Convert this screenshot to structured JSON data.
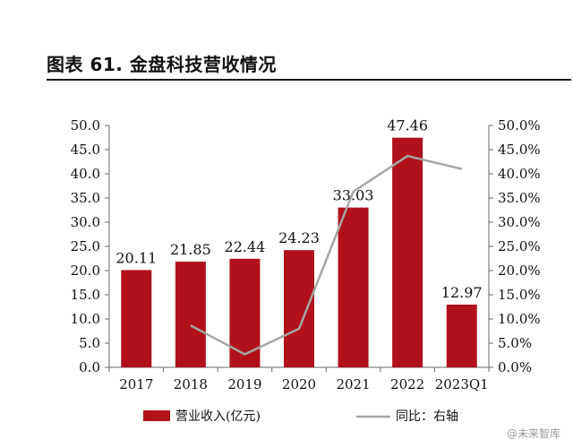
{
  "figure_title": "图表 61. 金盘科技营收情况",
  "watermark": "@未来智库",
  "colors": {
    "bar": "#b0111b",
    "line": "#a6a6a6",
    "axis": "#666666"
  },
  "chart_data": {
    "type": "bar",
    "categories": [
      "2017",
      "2018",
      "2019",
      "2020",
      "2021",
      "2022",
      "2023Q1"
    ],
    "series": [
      {
        "name": "营业收入(亿元)",
        "type": "bar",
        "axis": "left",
        "values": [
          20.11,
          21.85,
          22.44,
          24.23,
          33.03,
          47.46,
          12.97
        ]
      },
      {
        "name": "同比：右轴",
        "type": "line",
        "axis": "right",
        "values": [
          null,
          0.0866,
          0.027,
          0.0798,
          0.3632,
          0.4369,
          0.41
        ]
      }
    ],
    "data_labels": [
      "20.11",
      "21.85",
      "22.44",
      "24.23",
      "33.03",
      "47.46",
      "12.97"
    ],
    "left_axis": {
      "ylim": [
        0,
        50
      ],
      "ticks": [
        0,
        5,
        10,
        15,
        20,
        25,
        30,
        35,
        40,
        45,
        50
      ],
      "tick_labels": [
        "0.0",
        "5.0",
        "10.0",
        "15.0",
        "20.0",
        "25.0",
        "30.0",
        "35.0",
        "40.0",
        "45.0",
        "50.0"
      ]
    },
    "right_axis": {
      "ylim": [
        0,
        0.5
      ],
      "ticks": [
        0,
        0.05,
        0.1,
        0.15,
        0.2,
        0.25,
        0.3,
        0.35,
        0.4,
        0.45,
        0.5
      ],
      "tick_labels": [
        "0.0%",
        "5.0%",
        "10.0%",
        "15.0%",
        "20.0%",
        "25.0%",
        "30.0%",
        "35.0%",
        "40.0%",
        "45.0%",
        "50.0%"
      ]
    },
    "grid": false,
    "legend": {
      "position": "bottom",
      "entries": [
        "营业收入(亿元)",
        "同比：右轴"
      ]
    }
  }
}
